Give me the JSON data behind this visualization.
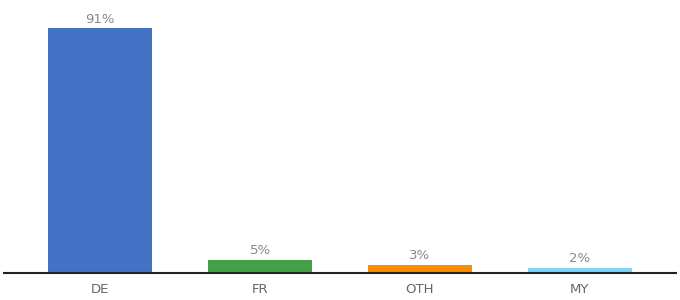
{
  "categories": [
    "DE",
    "FR",
    "OTH",
    "MY"
  ],
  "values": [
    91,
    5,
    3,
    2
  ],
  "bar_colors": [
    "#4472c4",
    "#43a047",
    "#fb8c00",
    "#81d4fa"
  ],
  "labels": [
    "91%",
    "5%",
    "3%",
    "2%"
  ],
  "ylim": [
    0,
    100
  ],
  "background_color": "#ffffff",
  "label_fontsize": 9.5,
  "tick_fontsize": 9.5,
  "bar_width": 0.65,
  "label_color": "#888888",
  "tick_color": "#666666",
  "spine_color": "#222222"
}
